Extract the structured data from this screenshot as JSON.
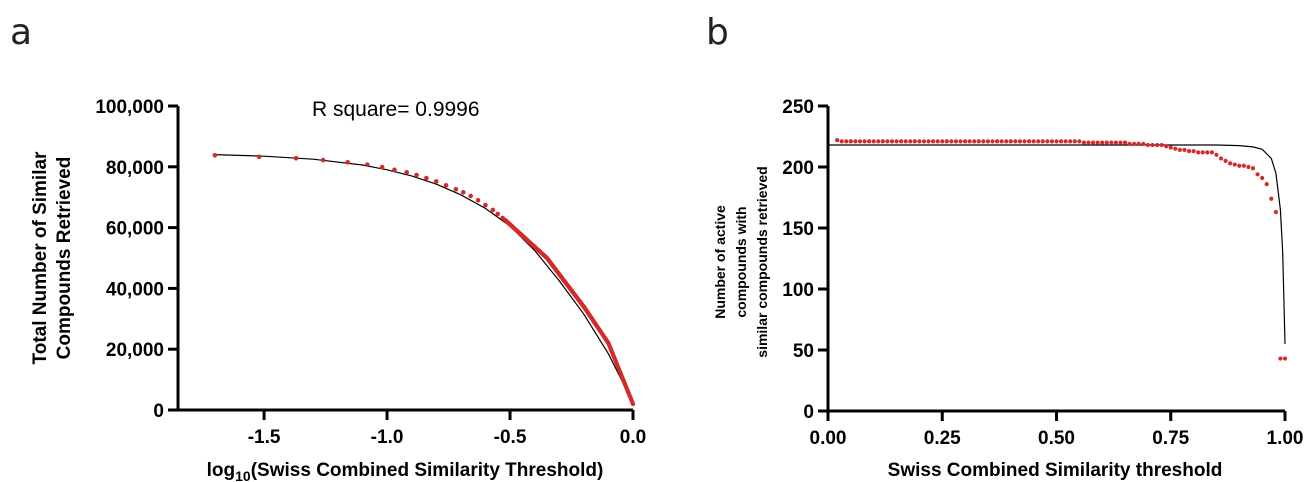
{
  "panels": {
    "a": {
      "letter": "a"
    },
    "b": {
      "letter": "b"
    }
  },
  "chart_data": [
    {
      "type": "scatter",
      "panel": "a",
      "annotation": "R square= 0.9996",
      "xlabel": "log10(Swiss Combined Similarity Threshold)",
      "xlabel_parts": {
        "pre": "log",
        "sub": "10",
        "post": "(Swiss Combined Similarity Threshold)"
      },
      "ylabel": "Total Number of Similar Compounds Retrieved",
      "ylabel_lines": [
        "Total Number of Similar",
        "Compounds Retrieved"
      ],
      "xlim": [
        -1.85,
        0.0
      ],
      "ylim": [
        0,
        100000
      ],
      "xticks": [
        -1.5,
        -1.0,
        -0.5,
        0.0
      ],
      "xtick_labels": [
        "-1.5",
        "-1.0",
        "-0.5",
        "0.0"
      ],
      "yticks": [
        0,
        20000,
        40000,
        60000,
        80000,
        100000
      ],
      "ytick_labels": [
        "0",
        "20,000",
        "40,000",
        "60,000",
        "80,000",
        "100,000"
      ],
      "colors": {
        "points": "#d42a2a",
        "fit": "#000000"
      },
      "fit_curve": {
        "x": [
          -1.7,
          -1.5,
          -1.3,
          -1.1,
          -1.0,
          -0.9,
          -0.8,
          -0.7,
          -0.6,
          -0.5,
          -0.4,
          -0.3,
          -0.2,
          -0.1,
          -0.05,
          0.0
        ],
        "y": [
          84000,
          83500,
          82500,
          80600,
          79000,
          77000,
          74300,
          70800,
          66300,
          60500,
          52500,
          42500,
          31500,
          18500,
          10500,
          1500
        ]
      },
      "points_sparse": {
        "x": [
          -1.7,
          -1.52,
          -1.37,
          -1.26,
          -1.16,
          -1.08,
          -1.02,
          -0.97,
          -0.92,
          -0.88,
          -0.84,
          -0.8,
          -0.76,
          -0.72,
          -0.69,
          -0.66,
          -0.63,
          -0.6,
          -0.57,
          -0.55,
          -0.53
        ],
        "y": [
          83800,
          83300,
          82800,
          82200,
          81500,
          80700,
          79900,
          79000,
          78200,
          77300,
          76300,
          75200,
          73900,
          72600,
          71600,
          70400,
          69000,
          67400,
          65800,
          64500,
          63200
        ]
      },
      "points_dense_segments": [
        {
          "x0": -0.52,
          "y0": 62500,
          "x1": -0.35,
          "y1": 50000
        },
        {
          "x0": -0.35,
          "y0": 50000,
          "x1": -0.2,
          "y1": 34000
        },
        {
          "x0": -0.2,
          "y0": 34000,
          "x1": -0.1,
          "y1": 22000
        },
        {
          "x0": -0.1,
          "y0": 22000,
          "x1": 0.0,
          "y1": 2000
        }
      ]
    },
    {
      "type": "scatter",
      "panel": "b",
      "xlabel": "Swiss Combined Similarity threshold",
      "ylabel": "Number of active compounds with similar compounds retrieved",
      "ylabel_lines": [
        "Number of active",
        "compounds with",
        "similar compounds retrieved"
      ],
      "xlim": [
        0,
        1.0
      ],
      "ylim": [
        0,
        250
      ],
      "xticks": [
        0,
        0.25,
        0.5,
        0.75,
        1.0
      ],
      "xtick_labels": [
        "0.00",
        "0.25",
        "0.50",
        "0.75",
        "1.00"
      ],
      "yticks": [
        0,
        50,
        100,
        150,
        200,
        250
      ],
      "ytick_labels": [
        "0",
        "50",
        "100",
        "150",
        "200",
        "250"
      ],
      "colors": {
        "points": "#d42a2a",
        "fit": "#000000"
      },
      "fit_curve": {
        "x": [
          0.0,
          0.1,
          0.2,
          0.3,
          0.4,
          0.5,
          0.6,
          0.7,
          0.8,
          0.85,
          0.9,
          0.93,
          0.95,
          0.97,
          0.98,
          0.99,
          0.995,
          1.0
        ],
        "y": [
          218,
          218,
          218,
          218,
          218,
          218,
          218,
          218,
          218,
          218,
          217.5,
          216.5,
          214.5,
          207,
          195,
          165,
          130,
          55
        ]
      },
      "points": {
        "x": [
          0.02,
          0.03,
          0.04,
          0.05,
          0.06,
          0.07,
          0.08,
          0.09,
          0.1,
          0.11,
          0.12,
          0.13,
          0.14,
          0.15,
          0.16,
          0.17,
          0.18,
          0.19,
          0.2,
          0.21,
          0.22,
          0.23,
          0.24,
          0.25,
          0.26,
          0.27,
          0.28,
          0.29,
          0.3,
          0.31,
          0.32,
          0.33,
          0.34,
          0.35,
          0.36,
          0.37,
          0.38,
          0.39,
          0.4,
          0.41,
          0.42,
          0.43,
          0.44,
          0.45,
          0.46,
          0.47,
          0.48,
          0.49,
          0.5,
          0.51,
          0.52,
          0.53,
          0.54,
          0.55,
          0.56,
          0.57,
          0.58,
          0.59,
          0.6,
          0.61,
          0.62,
          0.63,
          0.64,
          0.65,
          0.66,
          0.67,
          0.68,
          0.69,
          0.7,
          0.71,
          0.72,
          0.73,
          0.74,
          0.75,
          0.76,
          0.77,
          0.78,
          0.79,
          0.8,
          0.81,
          0.82,
          0.83,
          0.84,
          0.85,
          0.86,
          0.87,
          0.88,
          0.89,
          0.9,
          0.91,
          0.92,
          0.93,
          0.94,
          0.95,
          0.96,
          0.97,
          0.98,
          0.99,
          1.0
        ],
        "y": [
          222,
          221,
          221,
          221,
          221,
          221,
          221,
          221,
          221,
          221,
          221,
          221,
          221,
          221,
          221,
          221,
          221,
          221,
          221,
          221,
          221,
          221,
          221,
          221,
          221,
          221,
          221,
          221,
          221,
          221,
          221,
          221,
          221,
          221,
          221,
          221,
          221,
          221,
          221,
          221,
          221,
          221,
          221,
          221,
          221,
          221,
          221,
          221,
          221,
          221,
          221,
          221,
          221,
          221,
          220,
          220,
          220,
          220,
          220,
          220,
          220,
          220,
          220,
          220,
          219,
          219,
          219,
          219,
          218,
          218,
          218,
          218,
          217,
          216,
          215,
          214,
          214,
          213,
          213,
          212,
          212,
          212,
          212,
          210,
          207,
          205,
          203,
          202,
          201,
          201,
          200,
          199,
          194,
          191,
          186,
          174,
          163,
          43,
          43
        ]
      }
    }
  ]
}
